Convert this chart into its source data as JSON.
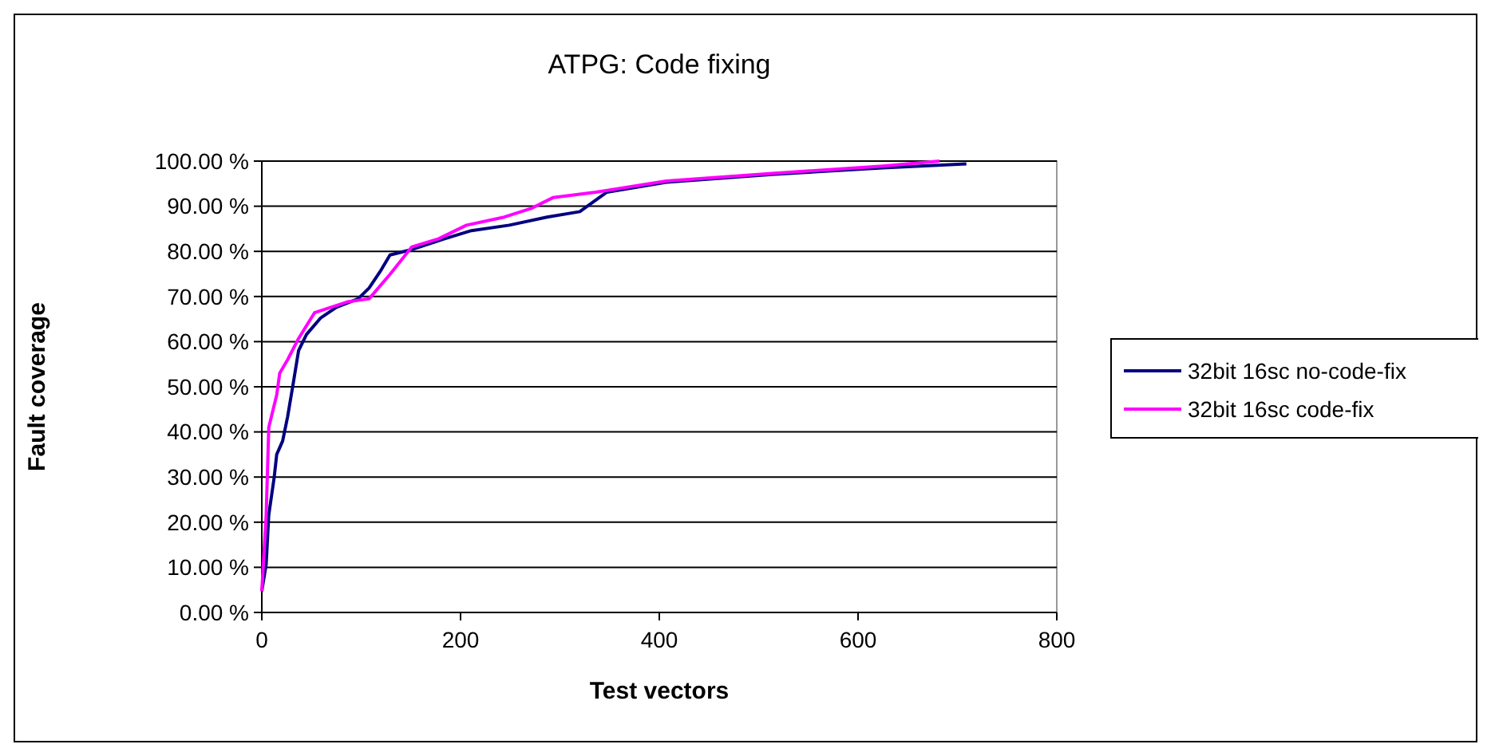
{
  "chart_data": {
    "type": "line",
    "title": "ATPG: Code fixing",
    "xlabel": "Test vectors",
    "ylabel": "Fault coverage",
    "xlim": [
      0,
      800
    ],
    "xticks": [
      0,
      200,
      400,
      600,
      800
    ],
    "ylim": [
      0,
      100
    ],
    "yticks": [
      {
        "value": 0,
        "label": "0.00 %"
      },
      {
        "value": 10,
        "label": "10.00 %"
      },
      {
        "value": 20,
        "label": "20.00 %"
      },
      {
        "value": 30,
        "label": "30.00 %"
      },
      {
        "value": 40,
        "label": "40.00 %"
      },
      {
        "value": 50,
        "label": "50.00 %"
      },
      {
        "value": 60,
        "label": "60.00 %"
      },
      {
        "value": 70,
        "label": "70.00 %"
      },
      {
        "value": 80,
        "label": "80.00 %"
      },
      {
        "value": 90,
        "label": "90.00 %"
      },
      {
        "value": 100,
        "label": "100.00 %"
      }
    ],
    "grid": "y",
    "legend": "right",
    "marker": "none",
    "line_style": "solid",
    "series": [
      {
        "name": "32bit 16sc no-code-fix",
        "color": "#000080",
        "x": [
          0,
          4.4,
          7,
          12.5,
          15,
          21,
          26,
          31.6,
          37,
          45,
          59,
          75,
          97,
          108,
          119,
          129,
          151,
          184,
          211,
          249,
          287,
          320,
          347,
          407,
          516,
          625,
          709
        ],
        "values": [
          4.7,
          10.7,
          21.6,
          30,
          35,
          38,
          43.4,
          50.7,
          58,
          61.6,
          65.2,
          67.6,
          69.5,
          71.9,
          75.5,
          79.2,
          80.4,
          82.8,
          84.6,
          85.8,
          87.6,
          88.8,
          93.1,
          95.3,
          97.1,
          98.5,
          99.4
        ]
      },
      {
        "name": "32bit 16sc code-fix",
        "color": "#ff00ff",
        "x": [
          0,
          4.4,
          7,
          15,
          18,
          26,
          37,
          53,
          86,
          108,
          129,
          151,
          178,
          206,
          244,
          271,
          293,
          336,
          407,
          516,
          625,
          682
        ],
        "values": [
          4.7,
          21.6,
          41,
          48.2,
          53,
          56,
          60.7,
          66.4,
          68.8,
          69.5,
          74.9,
          81,
          82.8,
          85.8,
          87.6,
          89.5,
          91.9,
          93.1,
          95.6,
          97.3,
          98.9,
          100
        ]
      }
    ]
  }
}
